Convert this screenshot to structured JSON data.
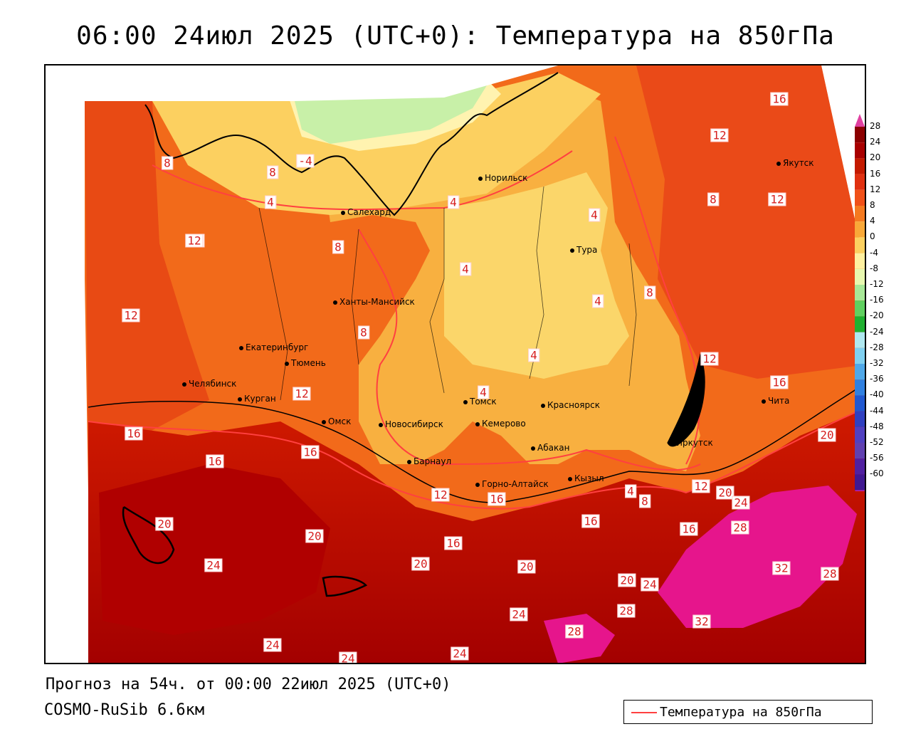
{
  "title": "06:00 24июл 2025 (UTC+0): Температура на 850гПа",
  "footer": {
    "forecast": "Прогноз на 54ч. от 00:00 22июл 2025 (UTC+0)",
    "model": "COSMO-RuSib 6.6км"
  },
  "legend": {
    "line_label": "Температура на 850гПа",
    "line_color": "#ff4040"
  },
  "colorbar": {
    "labels": [
      "28",
      "24",
      "20",
      "16",
      "12",
      "8",
      "4",
      "0",
      "-4",
      "-8",
      "-12",
      "-16",
      "-20",
      "-24",
      "-28",
      "-32",
      "-36",
      "-40",
      "-44",
      "-48",
      "-52",
      "-56",
      "-60"
    ],
    "colors": [
      "#8b0000",
      "#a80000",
      "#c41a00",
      "#e03010",
      "#f05018",
      "#f57a20",
      "#f9a838",
      "#fcd060",
      "#fff0a0",
      "#e8f8b0",
      "#a8e898",
      "#60d060",
      "#20b030",
      "#b0e8f0",
      "#80d0f0",
      "#50a8e8",
      "#3080e0",
      "#2058d0",
      "#3040c0",
      "#5040c0",
      "#6040b0",
      "#5020a0",
      "#401890"
    ],
    "top_color": "#e040a0",
    "bottom_color": "#c020c0"
  },
  "cities": [
    {
      "name": "Норильск"
    },
    {
      "name": "Якутск"
    },
    {
      "name": "Салехард"
    },
    {
      "name": "Тура"
    },
    {
      "name": "Ханты-Мансийск"
    },
    {
      "name": "Екатеринбург"
    },
    {
      "name": "Тюмень"
    },
    {
      "name": "Челябинск"
    },
    {
      "name": "Курган"
    },
    {
      "name": "Омск"
    },
    {
      "name": "Новосибирск"
    },
    {
      "name": "Томск"
    },
    {
      "name": "Кемерово"
    },
    {
      "name": "Красноярск"
    },
    {
      "name": "Барнаул"
    },
    {
      "name": "Абакан"
    },
    {
      "name": "Горно-Алтайск"
    },
    {
      "name": "Кызыл"
    },
    {
      "name": "Иркутск"
    },
    {
      "name": "Чита"
    }
  ],
  "isotherm_labels": [
    "16",
    "12",
    "8",
    "-4",
    "8",
    "4",
    "4",
    "8",
    "4",
    "12",
    "12",
    "8",
    "4",
    "12",
    "4",
    "8",
    "16",
    "12",
    "12",
    "8",
    "4",
    "12",
    "4",
    "16",
    "16",
    "16",
    "4",
    "8",
    "20",
    "12",
    "16",
    "12",
    "16",
    "20",
    "20",
    "24",
    "20",
    "24",
    "20",
    "28",
    "16",
    "20",
    "32",
    "28",
    "16",
    "24",
    "20",
    "24",
    "28",
    "32",
    "28",
    "24",
    "24",
    "24"
  ]
}
